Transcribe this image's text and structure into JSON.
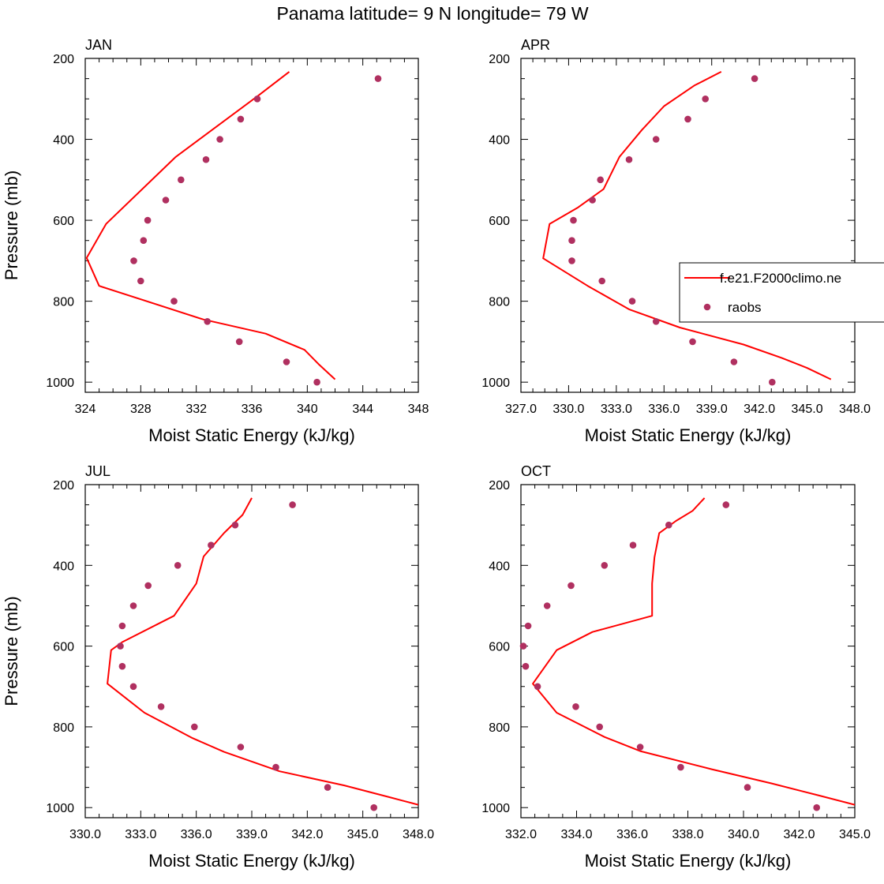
{
  "figure_title": "Panama  latitude= 9 N longitude= 79 W",
  "legend": {
    "model_label": "f.e21.F2000climo.ne",
    "obs_label": "raobs",
    "model_color": "#ff0000",
    "obs_color": "#b03060"
  },
  "chart_data": [
    {
      "type": "line",
      "panel": "JAN",
      "title": "JAN",
      "xlabel": "Moist Static Energy (kJ/kg)",
      "ylabel": "Pressure (mb)",
      "xlim": [
        324,
        348
      ],
      "ylim": [
        1000,
        200
      ],
      "xticks": [
        "324",
        "328",
        "332",
        "336",
        "340",
        "344",
        "348"
      ],
      "yticks": [
        "200",
        "400",
        "600",
        "800",
        "1000"
      ],
      "series": [
        {
          "name": "f.e21.F2000climo.ne",
          "kind": "line",
          "x": [
            338.7,
            336.5,
            330.5,
            325.5,
            324.1,
            325.0,
            332.5,
            337.0,
            339.8,
            340.8,
            342.0
          ],
          "y": [
            233,
            291,
            444,
            609,
            693,
            762,
            845,
            880,
            920,
            955,
            993
          ]
        },
        {
          "name": "raobs",
          "kind": "scatter",
          "x": [
            345.1,
            336.4,
            335.2,
            333.7,
            332.7,
            330.9,
            329.8,
            328.5,
            328.2,
            327.5,
            328.0,
            330.4,
            332.8,
            335.1,
            338.5,
            340.7
          ],
          "y": [
            250,
            300,
            350,
            400,
            450,
            500,
            550,
            600,
            650,
            700,
            750,
            800,
            850,
            900,
            950,
            1000
          ]
        }
      ]
    },
    {
      "type": "line",
      "panel": "APR",
      "title": "APR",
      "xlabel": "Moist Static Energy (kJ/kg)",
      "ylabel": "",
      "xlim": [
        327.0,
        348.0
      ],
      "ylim": [
        1000,
        200
      ],
      "xticks": [
        "327.0",
        "330.0",
        "333.0",
        "336.0",
        "339.0",
        "342.0",
        "345.0",
        "348.0"
      ],
      "yticks": [
        "200",
        "400",
        "600",
        "800",
        "1000"
      ],
      "series": [
        {
          "name": "f.e21.F2000climo.ne",
          "kind": "line",
          "x": [
            339.6,
            337.9,
            336.0,
            334.6,
            333.2,
            332.2,
            330.6,
            328.8,
            328.4,
            331.2,
            333.8,
            337.0,
            341.0,
            343.4,
            345.0,
            346.5
          ],
          "y": [
            233,
            267,
            318,
            377,
            443,
            523,
            568,
            609,
            694,
            762,
            820,
            865,
            907,
            940,
            965,
            993
          ]
        },
        {
          "name": "raobs",
          "kind": "scatter",
          "x": [
            341.7,
            338.6,
            337.5,
            335.5,
            333.8,
            332.0,
            331.5,
            330.3,
            330.2,
            330.2,
            332.1,
            334.0,
            335.5,
            337.8,
            340.4,
            342.8
          ],
          "y": [
            250,
            300,
            350,
            400,
            450,
            500,
            550,
            600,
            650,
            700,
            750,
            800,
            850,
            900,
            950,
            1000
          ]
        }
      ]
    },
    {
      "type": "line",
      "panel": "JUL",
      "title": "JUL",
      "xlabel": "Moist Static Energy (kJ/kg)",
      "ylabel": "Pressure (mb)",
      "xlim": [
        330.0,
        348.0
      ],
      "ylim": [
        1000,
        200
      ],
      "xticks": [
        "330.0",
        "333.0",
        "336.0",
        "339.0",
        "342.0",
        "345.0",
        "348.0"
      ],
      "yticks": [
        "200",
        "400",
        "600",
        "800",
        "1000"
      ],
      "series": [
        {
          "name": "f.e21.F2000climo.ne",
          "kind": "line",
          "x": [
            339.0,
            338.5,
            337.5,
            336.4,
            336.0,
            334.8,
            332.0,
            331.4,
            331.2,
            333.2,
            335.8,
            337.5,
            340.5,
            344.0,
            346.5,
            348.0
          ],
          "y": [
            233,
            275,
            320,
            378,
            445,
            525,
            590,
            610,
            693,
            765,
            828,
            862,
            910,
            945,
            975,
            993
          ]
        },
        {
          "name": "raobs",
          "kind": "scatter",
          "x": [
            341.2,
            338.1,
            336.8,
            335.0,
            333.4,
            332.6,
            332.0,
            331.9,
            332.0,
            332.6,
            334.1,
            335.9,
            338.4,
            340.3,
            343.1,
            345.6
          ],
          "y": [
            250,
            300,
            350,
            400,
            450,
            500,
            550,
            600,
            650,
            700,
            750,
            800,
            850,
            900,
            950,
            1000
          ]
        }
      ]
    },
    {
      "type": "line",
      "panel": "OCT",
      "title": "OCT",
      "xlabel": "Moist Static Energy (kJ/kg)",
      "ylabel": "",
      "xlim": [
        332.0,
        346.0
      ],
      "ylim": [
        1000,
        200
      ],
      "xticks": [
        "332.0",
        "334.0",
        "336.0",
        "338.0",
        "340.0",
        "342.0",
        "345.0"
      ],
      "yticks": [
        "200",
        "400",
        "600",
        "800",
        "1000"
      ],
      "series": [
        {
          "name": "f.e21.F2000climo.ne",
          "kind": "line",
          "x": [
            339.7,
            339.2,
            338.5,
            337.8,
            337.6,
            337.5,
            337.5,
            335.0,
            333.5,
            332.5,
            333.5,
            335.5,
            337.0,
            340.0,
            342.5,
            344.5,
            346.0
          ],
          "y": [
            233,
            265,
            290,
            320,
            380,
            445,
            525,
            565,
            610,
            693,
            765,
            825,
            860,
            905,
            940,
            970,
            993
          ]
        },
        {
          "name": "raobs",
          "kind": "scatter",
          "x": [
            340.6,
            338.2,
            336.7,
            335.5,
            334.1,
            333.1,
            332.3,
            332.1,
            332.2,
            332.7,
            334.3,
            335.3,
            337.0,
            338.7,
            341.5,
            344.4
          ],
          "y": [
            250,
            300,
            350,
            400,
            450,
            500,
            550,
            600,
            650,
            700,
            750,
            800,
            850,
            900,
            950,
            1000
          ]
        }
      ]
    }
  ]
}
